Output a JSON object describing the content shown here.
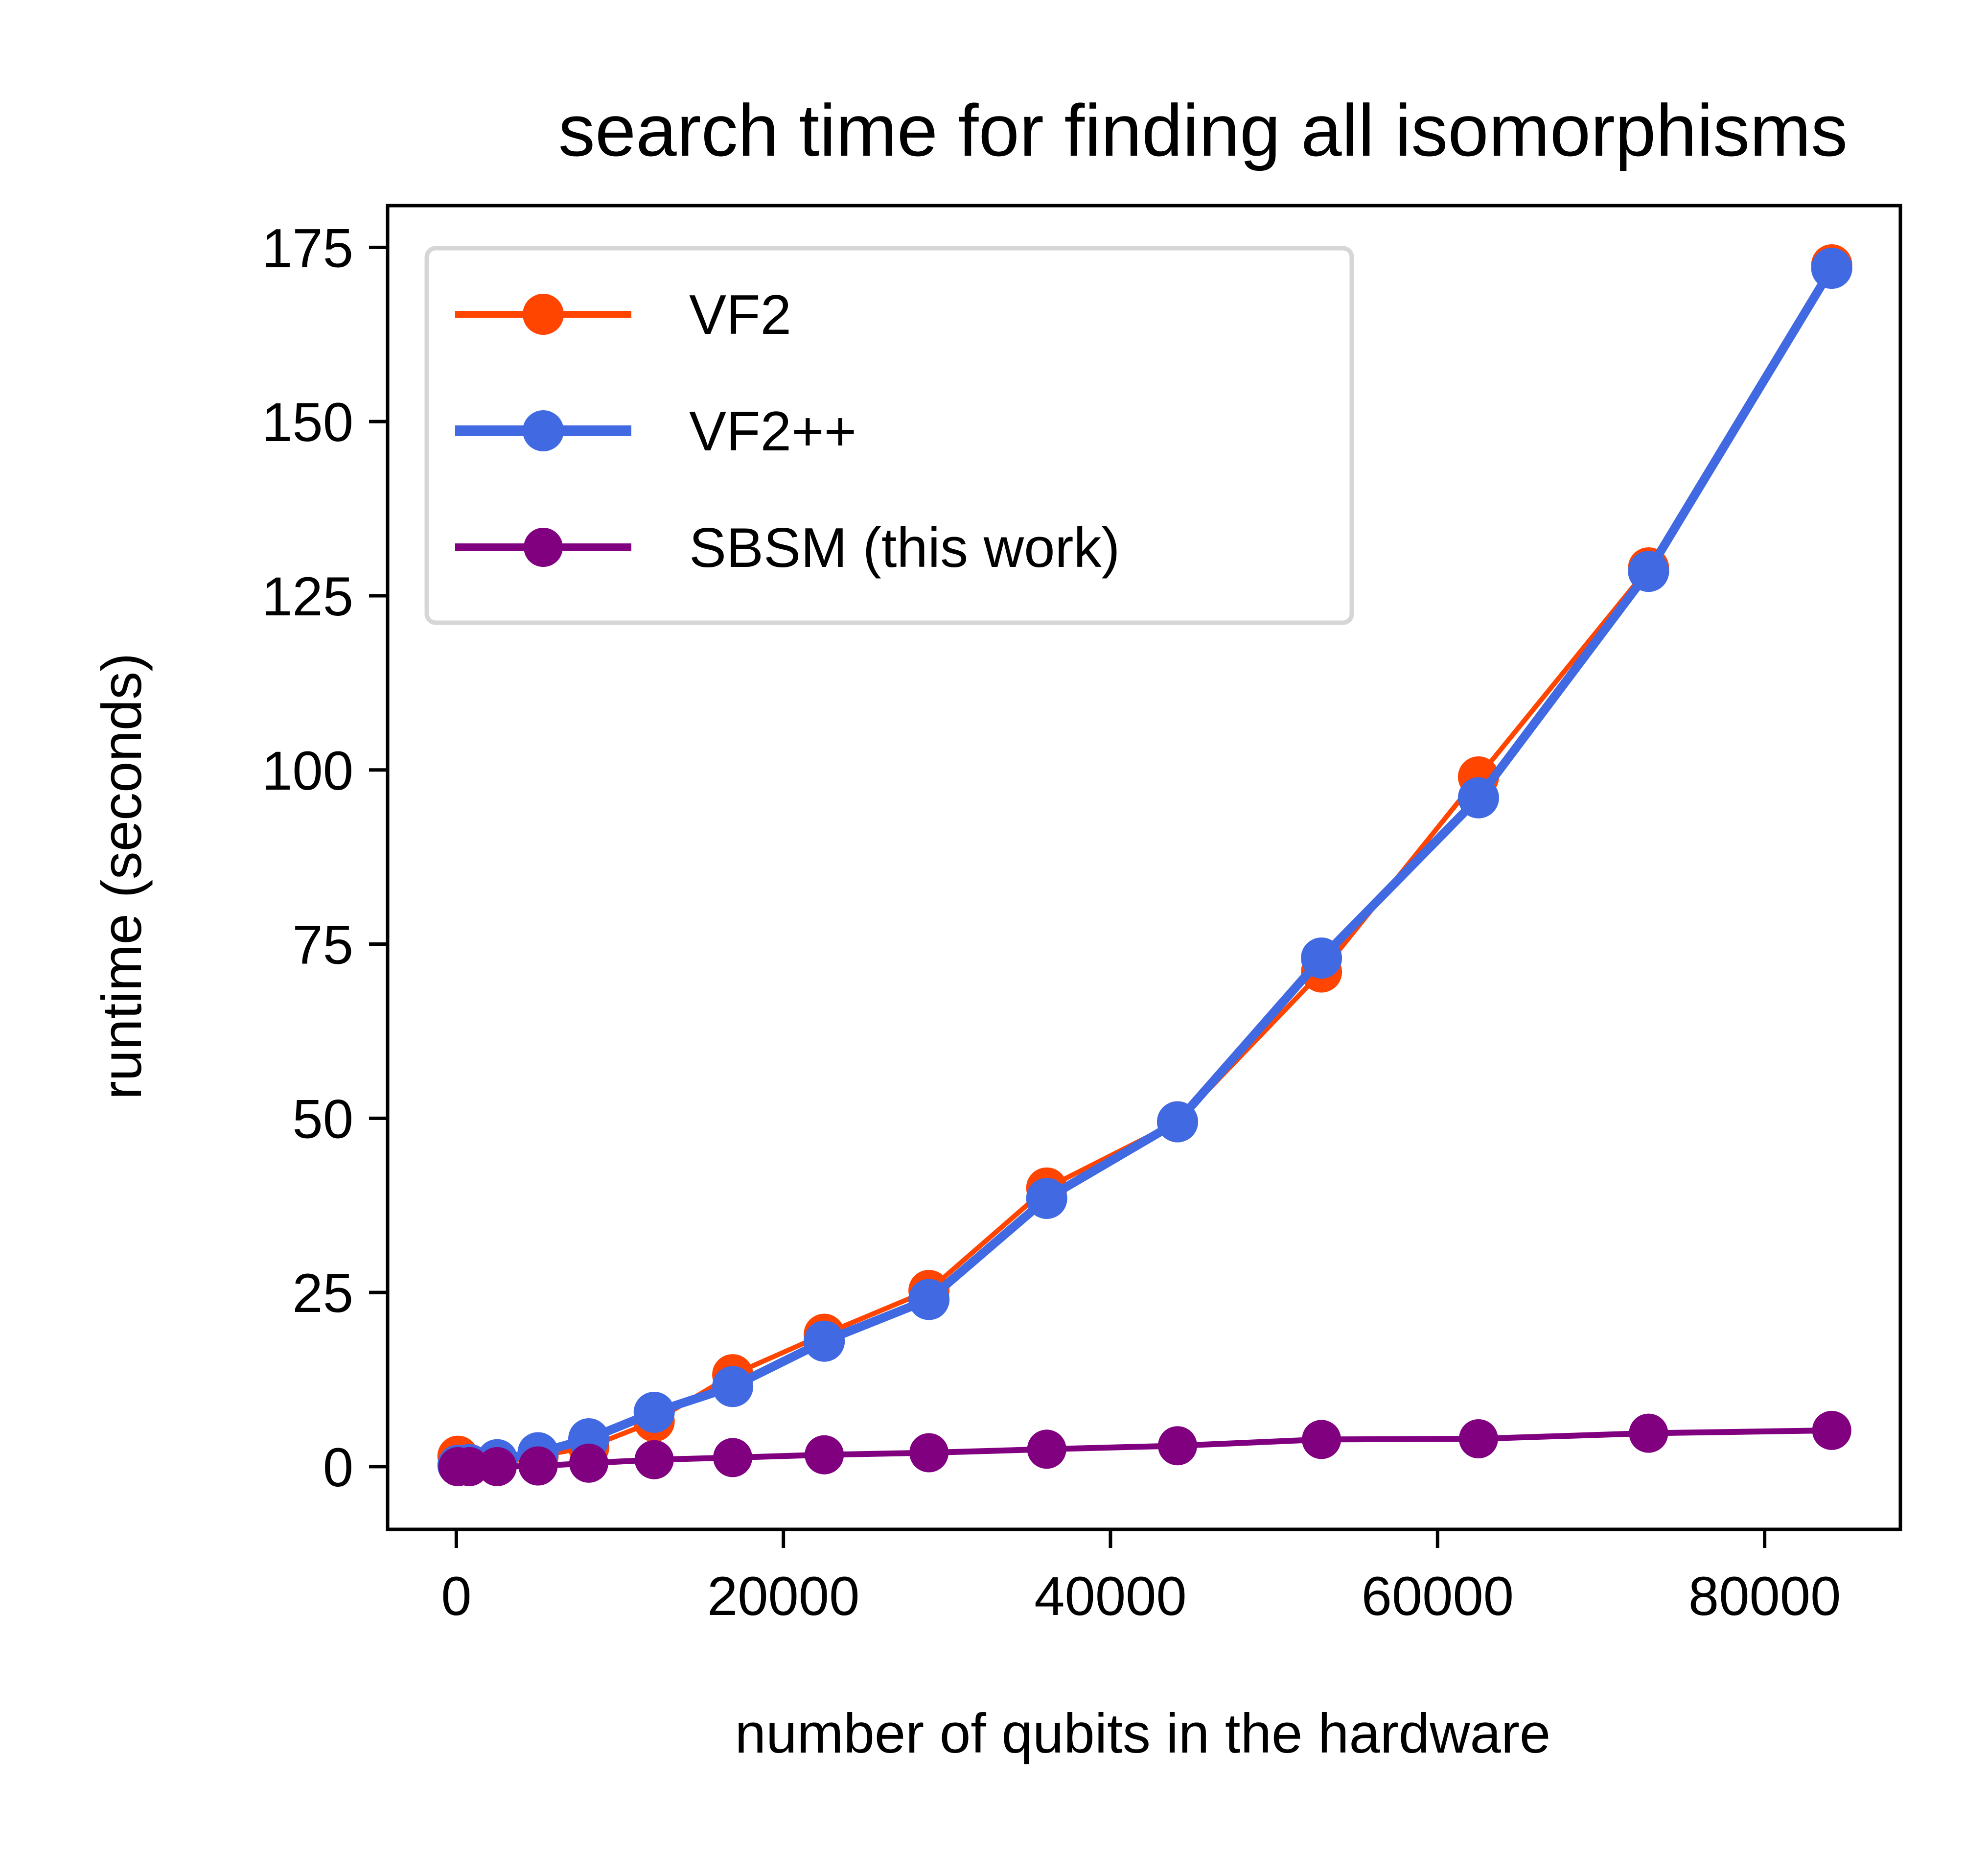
{
  "chart_data": {
    "type": "line",
    "title": "search time for finding all isomorphisms",
    "xlabel": "number of qubits in the hardware",
    "ylabel": "runtime (seconds)",
    "xlim": [
      -4200,
      88300
    ],
    "ylim": [
      -9,
      181
    ],
    "xticks": [
      0,
      20000,
      40000,
      60000,
      80000
    ],
    "yticks": [
      0,
      25,
      50,
      75,
      100,
      125,
      150,
      175
    ],
    "xtick_labels": [
      "0",
      "20000",
      "40000",
      "60000",
      "80000"
    ],
    "ytick_labels": [
      "0",
      "25",
      "50",
      "75",
      "100",
      "125",
      "150",
      "175"
    ],
    "grid": false,
    "legend_position": "top-left",
    "x": [
      100,
      800,
      2500,
      5000,
      8100,
      12100,
      16900,
      22500,
      28900,
      36100,
      44100,
      52900,
      62500,
      72900,
      84100
    ],
    "series": [
      {
        "name": "VF2",
        "color": "#FF4500",
        "values": [
          1.5,
          0.3,
          0.8,
          1.5,
          2.8,
          6.5,
          13.2,
          19.0,
          25.3,
          40.0,
          49.5,
          71.0,
          99.0,
          129.0,
          172.5
        ]
      },
      {
        "name": "VF2++",
        "color": "#4169E1",
        "values": [
          0.2,
          0.3,
          1.0,
          2.0,
          4.0,
          7.8,
          11.5,
          18.0,
          24.0,
          38.5,
          49.5,
          73.0,
          96.0,
          128.5,
          172.0
        ]
      },
      {
        "name": "SBSM (this work)",
        "color": "#800080",
        "values": [
          0.0,
          0.0,
          0.0,
          0.1,
          0.5,
          1.0,
          1.3,
          1.7,
          2.0,
          2.5,
          3.0,
          3.9,
          4.0,
          4.8,
          5.2
        ]
      }
    ]
  }
}
